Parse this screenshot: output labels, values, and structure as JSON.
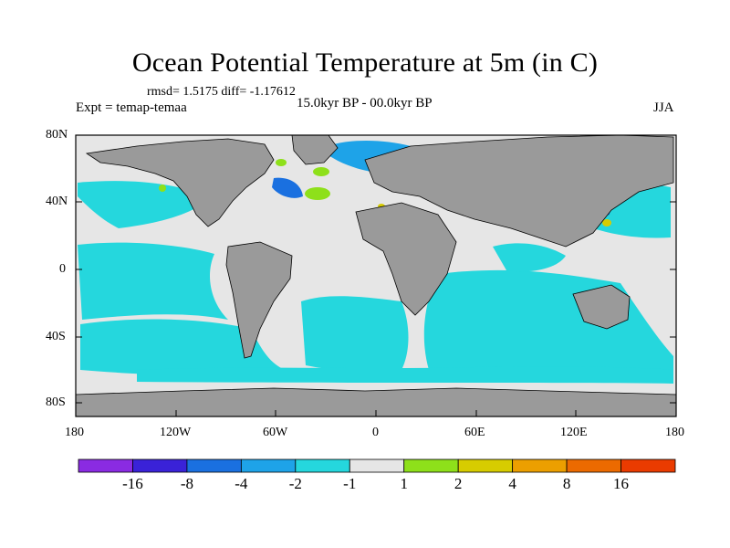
{
  "title": "Ocean Potential Temperature at 5m (in C)",
  "stats": "rmsd= 1.5175  diff= -1.17612",
  "experiment": "Expt = temap-temaa",
  "period": "15.0kyr BP - 00.0kyr BP",
  "season": "JJA",
  "lat_ticks": [
    "80N",
    "40N",
    "0",
    "40S",
    "80S"
  ],
  "lon_ticks": [
    "180",
    "120W",
    "60W",
    "0",
    "60E",
    "120E",
    "180"
  ],
  "colorbar": {
    "labels": [
      "-16",
      "-8",
      "-4",
      "-2",
      "-1",
      "1",
      "2",
      "4",
      "8",
      "16"
    ],
    "colors": [
      "#8a2be2",
      "#3a22d8",
      "#1a70e0",
      "#1ea3e8",
      "#25d7dd",
      "#e6e6e6",
      "#8ee01a",
      "#d7cc00",
      "#ec9f00",
      "#ec6a00",
      "#ea3b00"
    ]
  },
  "map_colors": {
    "land": "#9a9a9a",
    "neutral": "#e6e6e6",
    "cool1": "#25d7dd",
    "cool2": "#1ea3e8",
    "cool3": "#1a70e0",
    "warm1": "#8ee01a",
    "warm2": "#d7cc00"
  }
}
